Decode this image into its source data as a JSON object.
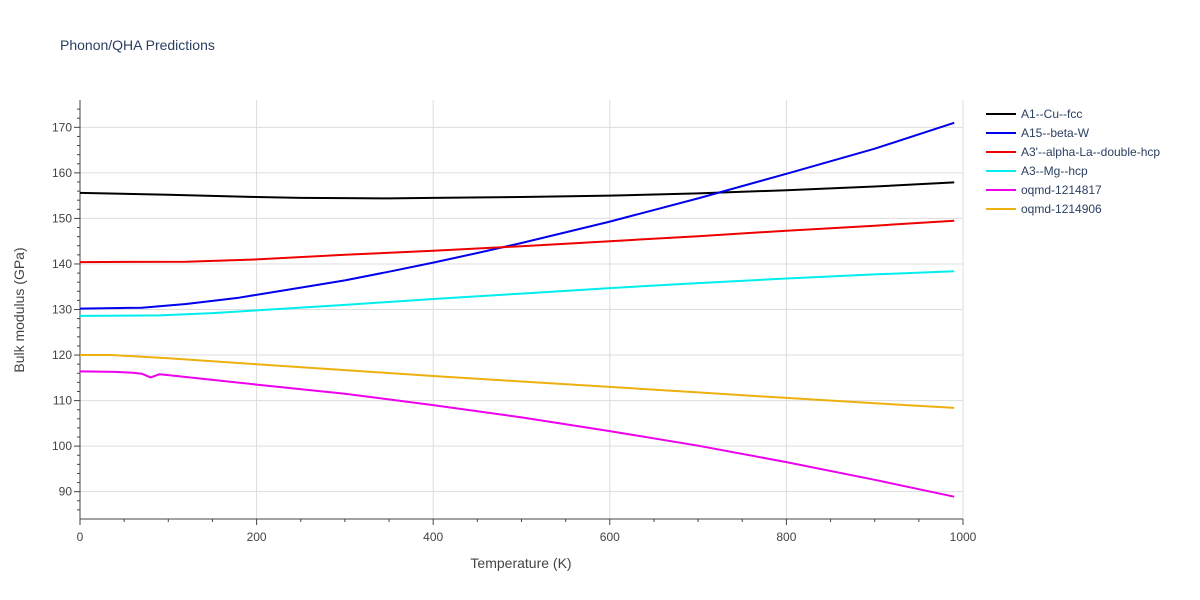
{
  "chart_data": {
    "type": "line",
    "title": "Phonon/QHA Predictions",
    "xlabel": "Temperature (K)",
    "ylabel": "Bulk modulus (GPa)",
    "xlim": [
      0,
      1000
    ],
    "ylim": [
      84,
      176
    ],
    "xticks": [
      0,
      200,
      400,
      600,
      800,
      1000
    ],
    "yticks": [
      90,
      100,
      110,
      120,
      130,
      140,
      150,
      160,
      170
    ],
    "grid": true,
    "legend_position": "top-right",
    "series": [
      {
        "name": "A1--Cu--fcc",
        "color": "#000000",
        "x": [
          0,
          100,
          200,
          250,
          300,
          350,
          400,
          500,
          600,
          700,
          800,
          900,
          990
        ],
        "y": [
          155.6,
          155.2,
          154.7,
          154.5,
          154.45,
          154.4,
          154.5,
          154.7,
          155.0,
          155.5,
          156.2,
          157.0,
          157.9
        ]
      },
      {
        "name": "A15--beta-W",
        "color": "#0000ee",
        "x": [
          0,
          70,
          120,
          180,
          250,
          300,
          350,
          400,
          450,
          500,
          600,
          700,
          800,
          900,
          990
        ],
        "y": [
          130.2,
          130.4,
          131.2,
          132.6,
          134.8,
          136.4,
          138.3,
          140.3,
          142.4,
          144.6,
          149.3,
          154.4,
          159.8,
          165.3,
          171.0
        ]
      },
      {
        "name": "A3'--alpha-La--double-hcp",
        "color": "#ee0000",
        "x": [
          0,
          120,
          200,
          300,
          400,
          500,
          600,
          700,
          800,
          900,
          990
        ],
        "y": [
          140.4,
          140.5,
          141.0,
          142.0,
          142.9,
          143.9,
          145.0,
          146.1,
          147.3,
          148.4,
          149.5
        ]
      },
      {
        "name": "A3--Mg--hcp",
        "color": "#00eeee",
        "x": [
          0,
          90,
          150,
          200,
          300,
          400,
          500,
          600,
          700,
          800,
          900,
          990
        ],
        "y": [
          128.6,
          128.7,
          129.2,
          129.8,
          131.0,
          132.3,
          133.5,
          134.7,
          135.8,
          136.8,
          137.7,
          138.4
        ]
      },
      {
        "name": "oqmd-1214817",
        "color": "#ee00ee",
        "x": [
          0,
          40,
          60,
          70,
          80,
          90,
          100,
          200,
          300,
          400,
          500,
          600,
          700,
          800,
          900,
          990
        ],
        "y": [
          116.4,
          116.3,
          116.1,
          115.9,
          115.1,
          115.8,
          115.6,
          113.5,
          111.5,
          109.0,
          106.3,
          103.3,
          100.1,
          96.5,
          92.6,
          88.9
        ]
      },
      {
        "name": "oqmd-1214906",
        "color": "#eeb00e",
        "x": [
          0,
          35,
          100,
          200,
          300,
          400,
          500,
          600,
          700,
          800,
          900,
          990
        ],
        "y": [
          120.0,
          120.0,
          119.3,
          118.0,
          116.7,
          115.4,
          114.2,
          113.0,
          111.8,
          110.6,
          109.4,
          108.4
        ]
      }
    ]
  }
}
